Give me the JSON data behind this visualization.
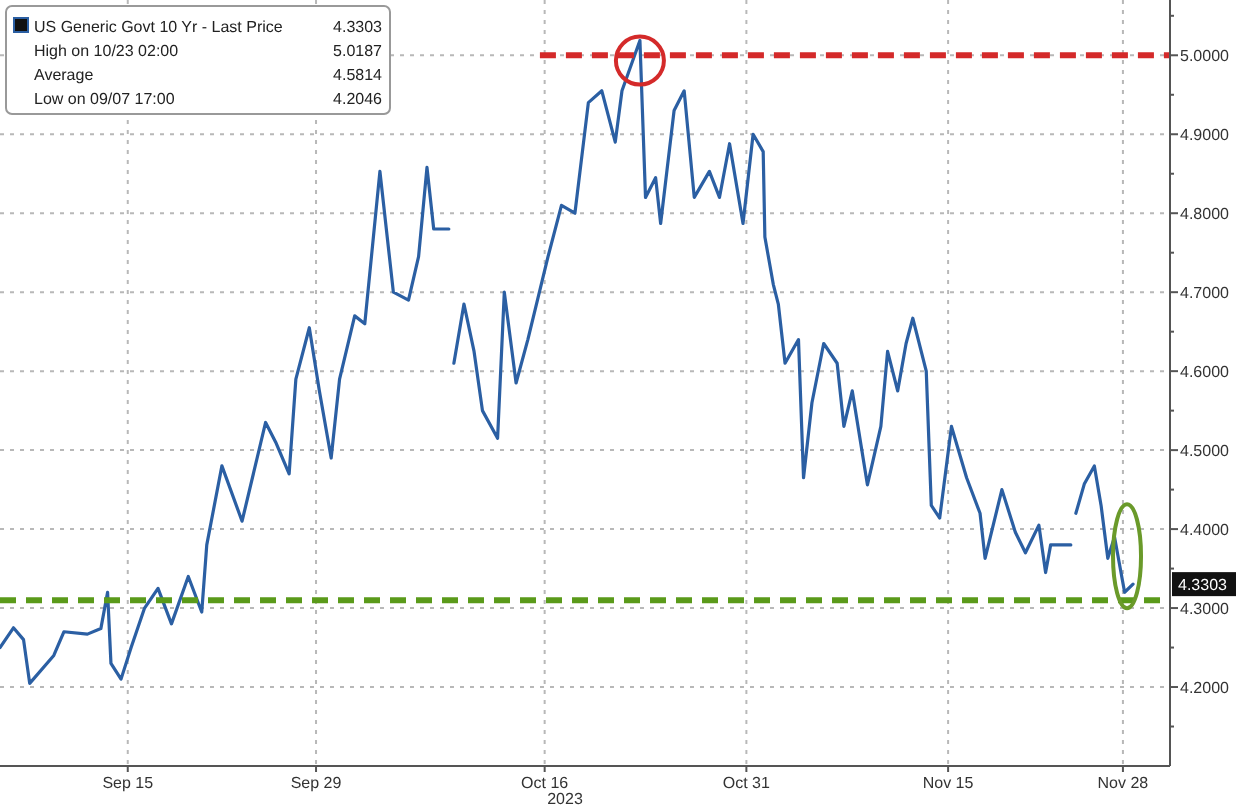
{
  "chart_data": {
    "type": "line",
    "xlabel": "2023",
    "legend": "top left",
    "grid": true,
    "x": [
      "2023-09-05T12:00",
      "2023-09-06T12:00",
      "2023-09-07T06:00",
      "2023-09-07T17:00",
      "2023-09-09T12:00",
      "2023-09-10T06:00",
      "2023-09-12T00:00",
      "2023-09-13T00:00",
      "2023-09-13T12:00",
      "2023-09-13T18:00",
      "2023-09-14T12:00",
      "2023-09-15T06:00",
      "2023-09-16T06:00",
      "2023-09-17T06:00",
      "2023-09-18T06:00",
      "2023-09-19T12:00",
      "2023-09-20T12:00",
      "2023-09-20T21:00",
      "2023-09-22T00:00",
      "2023-09-23T12:00",
      "2023-09-25T06:00",
      "2023-09-26T00:00",
      "2023-09-27T00:00",
      "2023-09-27T12:00",
      "2023-09-28T12:00",
      "2023-09-29T06:00",
      "2023-09-30T03:00",
      "2023-09-30T18:00",
      "2023-10-01T21:00",
      "2023-10-02T15:00",
      "2023-10-03T18:00",
      "2023-10-04T18:00",
      "2023-10-05T21:00",
      "2023-10-06T15:00",
      "2023-10-07T06:00",
      "2023-10-07T18:00",
      "2023-10-08T21:00",
      "2023-10-09T03:00",
      "2023-10-09T06:00",
      "2023-10-10T00:00",
      "2023-10-10T18:00",
      "2023-10-11T09:00",
      "2023-10-12T12:00",
      "2023-10-13T00:00",
      "2023-10-13T21:00",
      "2023-10-14T18:00",
      "2023-10-16T06:00",
      "2023-10-17T06:00",
      "2023-10-18T06:00",
      "2023-10-19T06:00",
      "2023-10-20T06:00",
      "2023-10-21T06:00",
      "2023-10-21T18:00",
      "2023-10-23T02:00",
      "2023-10-23T12:00",
      "2023-10-24T06:00",
      "2023-10-24T15:00",
      "2023-10-25T15:00",
      "2023-10-26T09:00",
      "2023-10-27T03:00",
      "2023-10-28T06:00",
      "2023-10-29T00:00",
      "2023-10-29T18:00",
      "2023-10-30T18:00",
      "2023-10-31T12:00",
      "2023-11-01T06:00",
      "2023-11-01T09:00",
      "2023-11-02T00:00",
      "2023-11-02T09:00",
      "2023-11-02T21:00",
      "2023-11-03T21:00",
      "2023-11-04T06:00",
      "2023-11-04T21:00",
      "2023-11-05T18:00",
      "2023-11-06T18:00",
      "2023-11-07T06:00",
      "2023-11-07T21:00",
      "2023-11-09T00:00",
      "2023-11-10T00:00",
      "2023-11-10T12:00",
      "2023-11-11T06:00",
      "2023-11-11T21:00",
      "2023-11-12T09:00",
      "2023-11-13T09:00",
      "2023-11-13T18:00",
      "2023-11-14T09:00",
      "2023-11-15T06:00",
      "2023-11-16T09:00",
      "2023-11-17T09:00",
      "2023-11-17T18:00",
      "2023-11-19T00:00",
      "2023-11-20T00:00",
      "2023-11-20T18:00",
      "2023-11-21T18:00",
      "2023-11-22T06:00",
      "2023-11-22T15:00",
      "2023-11-24T03:00",
      "2023-11-24T09:00",
      "2023-11-24T12:00",
      "2023-11-25T03:00",
      "2023-11-25T21:00",
      "2023-11-26T09:00",
      "2023-11-26T21:00",
      "2023-11-27T09:00",
      "2023-11-28T03:00",
      "2023-11-28T18:00"
    ],
    "series": [
      {
        "name": "US Generic Govt 10 Yr - Last Price",
        "color": "#2b5fa3",
        "values": [
          4.25,
          4.275,
          4.26,
          4.2046,
          4.24,
          4.27,
          4.267,
          4.274,
          4.32,
          4.23,
          4.21,
          4.25,
          4.3,
          4.325,
          4.28,
          4.34,
          4.295,
          4.38,
          4.48,
          4.41,
          4.535,
          4.51,
          4.47,
          4.59,
          4.655,
          4.575,
          4.49,
          4.59,
          4.67,
          4.66,
          4.853,
          4.7,
          4.69,
          4.745,
          4.858,
          4.78,
          4.78,
          null,
          4.61,
          4.685,
          4.625,
          4.55,
          4.515,
          4.7,
          4.585,
          4.64,
          4.745,
          4.81,
          4.8,
          4.94,
          4.955,
          4.89,
          4.955,
          5.0187,
          4.82,
          4.845,
          4.787,
          4.93,
          4.955,
          4.82,
          4.853,
          4.82,
          4.888,
          4.787,
          4.9,
          4.878,
          4.77,
          4.71,
          4.685,
          4.61,
          4.64,
          4.465,
          4.56,
          4.635,
          4.61,
          4.53,
          4.575,
          4.456,
          4.53,
          4.625,
          4.575,
          4.635,
          4.667,
          4.6,
          4.43,
          4.414,
          4.53,
          4.465,
          4.42,
          4.363,
          4.45,
          4.396,
          4.37,
          4.405,
          4.345,
          4.38,
          4.38,
          null,
          4.42,
          4.457,
          4.48,
          4.43,
          4.363,
          4.39,
          4.32,
          4.3303
        ]
      }
    ],
    "xlim": [
      "2023-09-05T12:00",
      "2023-12-01T12:00"
    ],
    "xticks": [
      {
        "value": "2023-09-15",
        "label": "Sep 15"
      },
      {
        "value": "2023-09-29",
        "label": "Sep 29"
      },
      {
        "value": "2023-10-16",
        "label": "Oct 16"
      },
      {
        "value": "2023-10-31",
        "label": "Oct 31"
      },
      {
        "value": "2023-11-15",
        "label": "Nov 15"
      },
      {
        "value": "2023-11-28",
        "label": "Nov 28"
      }
    ],
    "ylim": [
      4.1,
      5.07
    ],
    "yticks": [
      {
        "value": 4.15,
        "label": null
      },
      {
        "value": 4.2,
        "label": "4.2000"
      },
      {
        "value": 4.25,
        "label": null
      },
      {
        "value": 4.3,
        "label": "4.3000"
      },
      {
        "value": 4.35,
        "label": null
      },
      {
        "value": 4.4,
        "label": "4.4000"
      },
      {
        "value": 4.45,
        "label": null
      },
      {
        "value": 4.5,
        "label": "4.5000"
      },
      {
        "value": 4.55,
        "label": null
      },
      {
        "value": 4.6,
        "label": "4.6000"
      },
      {
        "value": 4.65,
        "label": null
      },
      {
        "value": 4.7,
        "label": "4.7000"
      },
      {
        "value": 4.75,
        "label": null
      },
      {
        "value": 4.8,
        "label": "4.8000"
      },
      {
        "value": 4.85,
        "label": null
      },
      {
        "value": 4.9,
        "label": "4.9000"
      },
      {
        "value": 4.95,
        "label": null
      },
      {
        "value": 5.0,
        "label": "5.0000"
      },
      {
        "value": 5.05,
        "label": null
      }
    ],
    "ref_lines": [
      {
        "axis": "y",
        "value": 5.0,
        "color": "#d42a2a",
        "line_style": "dashed"
      },
      {
        "axis": "y",
        "value": 4.31,
        "color": "#5a9a1a",
        "line_style": "dashed"
      }
    ],
    "annotations": [
      "4.3303",
      "High on 10/23 02:00",
      "5.0187",
      "Average",
      "4.5814",
      "Low on 09/07 17:00",
      "4.2046",
      "4.3303"
    ]
  }
}
